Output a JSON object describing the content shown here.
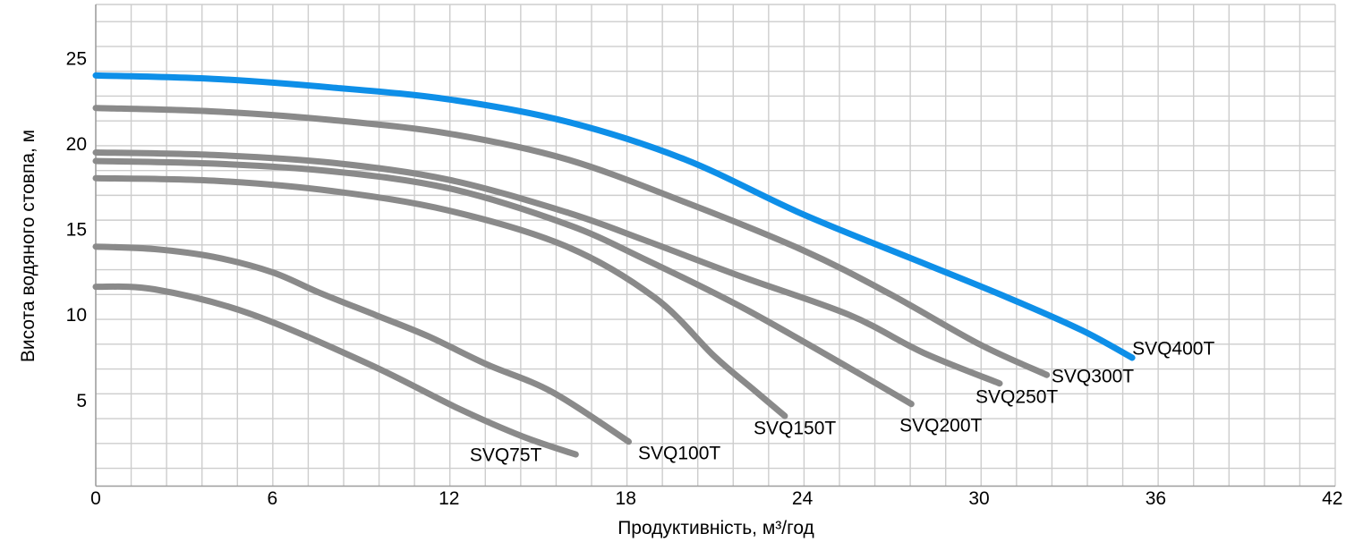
{
  "chart_data": {
    "type": "line",
    "title": "",
    "xlabel": "Продуктивність, м³/год",
    "ylabel": "Висота водяного стовпа, м",
    "xlim": [
      0,
      42.3
    ],
    "ylim": [
      0,
      28
    ],
    "x_ticks": [
      0,
      6,
      12,
      18,
      24,
      30,
      36,
      42
    ],
    "y_ticks": [
      5,
      10,
      15,
      20,
      25
    ],
    "grid": "fine light-gray grid, on",
    "legend_position": "labels at end of each curve",
    "units": {
      "x": "м³/год",
      "y": "м"
    },
    "series": [
      {
        "name": "SVQ75T",
        "color": "#8a8a8a",
        "points": [
          [
            0,
            11.65
          ],
          [
            2,
            11.5
          ],
          [
            5.2,
            10.1
          ],
          [
            9.25,
            7.15
          ],
          [
            12.3,
            4.55
          ],
          [
            14.5,
            2.9
          ],
          [
            16.3,
            1.85
          ]
        ],
        "label_at": [
          12.7,
          1.85
        ]
      },
      {
        "name": "SVQ100T",
        "color": "#8a8a8a",
        "points": [
          [
            0,
            14.0
          ],
          [
            2,
            13.85
          ],
          [
            4,
            13.4
          ],
          [
            6,
            12.5
          ],
          [
            7.6,
            11.3
          ],
          [
            9.5,
            10.0
          ],
          [
            11.3,
            8.75
          ],
          [
            13.3,
            7.1
          ],
          [
            15.5,
            5.5
          ],
          [
            18.1,
            2.6
          ]
        ],
        "label_at": [
          18.42,
          1.96
        ]
      },
      {
        "name": "SVQ150T",
        "color": "#8a8a8a",
        "points": [
          [
            0,
            18.0
          ],
          [
            4,
            17.85
          ],
          [
            8,
            17.25
          ],
          [
            12,
            16.1
          ],
          [
            16,
            14.0
          ],
          [
            19,
            11.0
          ],
          [
            21,
            7.6
          ],
          [
            22.3,
            5.7
          ],
          [
            23.4,
            4.1
          ]
        ],
        "label_at": [
          22.34,
          3.42
        ]
      },
      {
        "name": "SVQ200T",
        "color": "#8a8a8a",
        "points": [
          [
            0,
            19.0
          ],
          [
            4,
            18.85
          ],
          [
            8,
            18.4
          ],
          [
            12,
            17.4
          ],
          [
            16,
            15.3
          ],
          [
            18.6,
            13.3
          ],
          [
            22,
            10.4
          ],
          [
            25.6,
            6.9
          ],
          [
            27.7,
            4.8
          ]
        ],
        "label_at": [
          27.3,
          3.58
        ]
      },
      {
        "name": "SVQ250T",
        "color": "#8a8a8a",
        "points": [
          [
            0,
            19.5
          ],
          [
            4,
            19.35
          ],
          [
            8,
            18.9
          ],
          [
            12,
            17.9
          ],
          [
            16,
            16.0
          ],
          [
            18.6,
            14.4
          ],
          [
            22,
            12.2
          ],
          [
            25.6,
            10.0
          ],
          [
            28.1,
            7.8
          ],
          [
            30.7,
            6.0
          ]
        ],
        "label_at": [
          29.88,
          5.25
        ]
      },
      {
        "name": "SVQ300T",
        "color": "#8a8a8a",
        "points": [
          [
            0,
            22.1
          ],
          [
            4,
            21.9
          ],
          [
            8,
            21.4
          ],
          [
            12,
            20.6
          ],
          [
            16,
            19.1
          ],
          [
            20,
            16.6
          ],
          [
            24,
            13.8
          ],
          [
            27,
            11.2
          ],
          [
            30,
            8.3
          ],
          [
            32.3,
            6.5
          ]
        ],
        "label_at": [
          32.46,
          6.46
        ]
      },
      {
        "name": "SVQ400T",
        "color": "#0e8fe8",
        "points": [
          [
            0,
            24.0
          ],
          [
            4,
            23.8
          ],
          [
            8,
            23.3
          ],
          [
            12,
            22.6
          ],
          [
            16,
            21.3
          ],
          [
            20,
            19.1
          ],
          [
            24,
            15.9
          ],
          [
            28,
            13.1
          ],
          [
            31,
            11.0
          ],
          [
            33.5,
            9.1
          ],
          [
            35.2,
            7.5
          ]
        ],
        "label_at": [
          35.2,
          8.08
        ]
      }
    ],
    "colors": {
      "highlight_series": "#0e8fe8",
      "default_series": "#8a8a8a",
      "grid": "#cdcdcd",
      "axis": "#9e9e9e",
      "text": "#000000",
      "background": "#ffffff"
    }
  }
}
